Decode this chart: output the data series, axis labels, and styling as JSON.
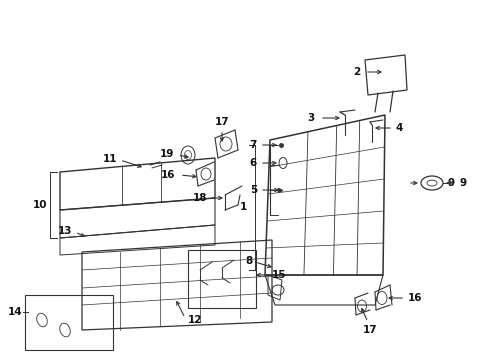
{
  "bg_color": "#ffffff",
  "line_color": "#333333",
  "text_color": "#111111",
  "figsize": [
    4.89,
    3.6
  ],
  "dpi": 100,
  "xlim": [
    0,
    489
  ],
  "ylim": [
    0,
    360
  ]
}
